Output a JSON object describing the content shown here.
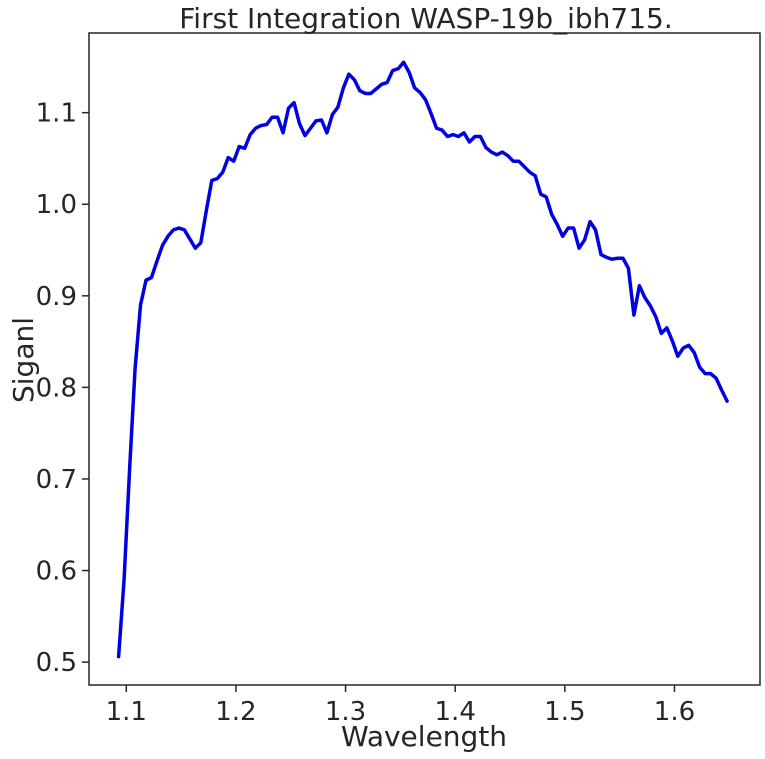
{
  "chart_data": {
    "type": "line",
    "title": "First Integration WASP-19b_ibh715.",
    "xlabel": "Wavelength",
    "ylabel": "Siganl",
    "xlim": [
      1.066,
      1.678
    ],
    "ylim": [
      0.475,
      1.187
    ],
    "xticks": [
      1.1,
      1.2,
      1.3,
      1.4,
      1.5,
      1.6
    ],
    "xtick_labels": [
      "1.1",
      "1.2",
      "1.3",
      "1.4",
      "1.5",
      "1.6"
    ],
    "yticks": [
      0.5,
      0.6,
      0.7,
      0.8,
      0.9,
      1.0,
      1.1
    ],
    "ytick_labels": [
      "0.5",
      "0.6",
      "0.7",
      "0.8",
      "0.9",
      "1.0",
      "1.1"
    ],
    "grid": false,
    "series": [
      {
        "color": "#0000e0",
        "x": [
          1.093,
          1.098,
          1.103,
          1.108,
          1.113,
          1.118,
          1.123,
          1.128,
          1.133,
          1.138,
          1.143,
          1.148,
          1.153,
          1.158,
          1.163,
          1.168,
          1.173,
          1.178,
          1.183,
          1.188,
          1.193,
          1.198,
          1.203,
          1.208,
          1.213,
          1.218,
          1.223,
          1.228,
          1.233,
          1.238,
          1.243,
          1.248,
          1.253,
          1.258,
          1.263,
          1.268,
          1.273,
          1.278,
          1.283,
          1.288,
          1.293,
          1.298,
          1.303,
          1.308,
          1.313,
          1.318,
          1.323,
          1.328,
          1.333,
          1.338,
          1.343,
          1.348,
          1.353,
          1.358,
          1.363,
          1.368,
          1.373,
          1.378,
          1.383,
          1.388,
          1.393,
          1.398,
          1.403,
          1.408,
          1.413,
          1.418,
          1.423,
          1.428,
          1.433,
          1.438,
          1.443,
          1.448,
          1.453,
          1.458,
          1.463,
          1.468,
          1.473,
          1.478,
          1.483,
          1.488,
          1.493,
          1.498,
          1.503,
          1.508,
          1.513,
          1.518,
          1.523,
          1.528,
          1.533,
          1.538,
          1.543,
          1.548,
          1.553,
          1.558,
          1.563,
          1.568,
          1.573,
          1.578,
          1.583,
          1.588,
          1.593,
          1.598,
          1.603,
          1.608,
          1.613,
          1.618,
          1.623,
          1.628,
          1.633,
          1.638,
          1.643,
          1.648
        ],
        "y": [
          0.506,
          0.59,
          0.71,
          0.82,
          0.89,
          0.917,
          0.92,
          0.938,
          0.955,
          0.965,
          0.972,
          0.974,
          0.972,
          0.962,
          0.952,
          0.958,
          0.993,
          1.026,
          1.028,
          1.035,
          1.051,
          1.047,
          1.063,
          1.061,
          1.076,
          1.083,
          1.086,
          1.087,
          1.095,
          1.095,
          1.078,
          1.105,
          1.111,
          1.088,
          1.075,
          1.083,
          1.091,
          1.092,
          1.078,
          1.098,
          1.106,
          1.127,
          1.142,
          1.136,
          1.124,
          1.121,
          1.121,
          1.126,
          1.131,
          1.133,
          1.146,
          1.148,
          1.155,
          1.144,
          1.127,
          1.122,
          1.114,
          1.099,
          1.083,
          1.081,
          1.074,
          1.076,
          1.074,
          1.078,
          1.068,
          1.074,
          1.074,
          1.062,
          1.057,
          1.054,
          1.057,
          1.053,
          1.047,
          1.047,
          1.041,
          1.035,
          1.031,
          1.011,
          1.008,
          0.989,
          0.978,
          0.965,
          0.974,
          0.974,
          0.952,
          0.961,
          0.981,
          0.972,
          0.945,
          0.942,
          0.94,
          0.941,
          0.941,
          0.93,
          0.879,
          0.911,
          0.898,
          0.889,
          0.877,
          0.859,
          0.865,
          0.851,
          0.834,
          0.843,
          0.846,
          0.838,
          0.822,
          0.815,
          0.815,
          0.81,
          0.797,
          0.785
        ]
      }
    ]
  }
}
